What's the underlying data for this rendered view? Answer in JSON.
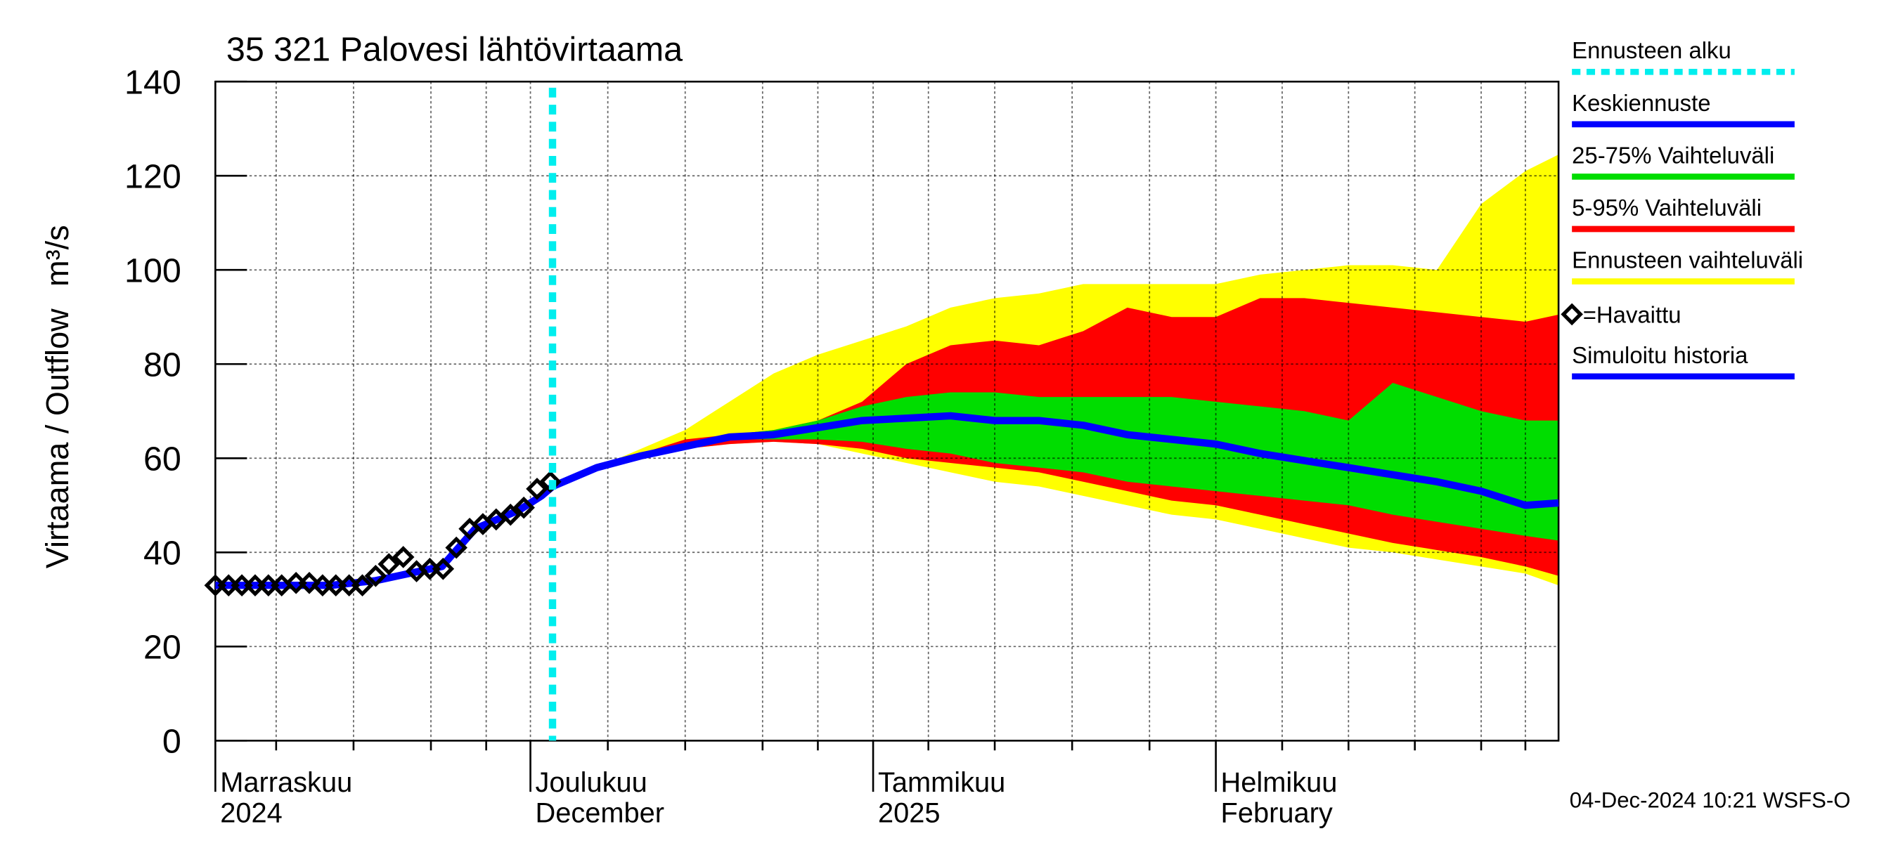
{
  "chart_data": {
    "type": "forecast-band",
    "title": "35 321 Palovesi lähtövirtaama",
    "ylabel": "Virtaama / Outflow",
    "yunit": "m³/s",
    "footer": "04-Dec-2024 10:21 WSFS-O",
    "ylim": [
      0,
      140
    ],
    "yticks": [
      0,
      20,
      40,
      60,
      80,
      100,
      120,
      140
    ],
    "xlim": [
      1.5,
      123
    ],
    "xticks": [
      {
        "value": 1.5,
        "label": [
          "Marraskuu",
          "2024"
        ]
      },
      {
        "value": 30,
        "label": [
          "Joulukuu",
          "December"
        ]
      },
      {
        "value": 61,
        "label": [
          "Tammikuu",
          "2025"
        ]
      },
      {
        "value": 92,
        "label": [
          "Helmikuu",
          "February"
        ]
      }
    ],
    "xminorticks": [
      7,
      14,
      21,
      26,
      37,
      44,
      51,
      56,
      66,
      72,
      79,
      86,
      98,
      104,
      110,
      116,
      120
    ],
    "grid": true,
    "forecast_start": {
      "name": "Ennusteen alku",
      "color": "#00eeee",
      "x": 32
    },
    "bands": [
      {
        "name": "Ennusteen vaihteluväli",
        "color": "#ffff00",
        "x": [
          32,
          36,
          40,
          44,
          48,
          52,
          56,
          60,
          64,
          68,
          72,
          76,
          80,
          84,
          88,
          92,
          96,
          100,
          104,
          108,
          112,
          116,
          120,
          123
        ],
        "low": [
          54,
          58,
          60,
          62,
          63,
          63.5,
          63,
          61,
          59,
          57,
          55,
          54,
          52,
          50,
          48,
          47,
          45,
          43,
          41,
          40,
          38.5,
          37,
          35.5,
          33
        ],
        "high": [
          54,
          58,
          62,
          66,
          72,
          78,
          82,
          85,
          88,
          92,
          94,
          95,
          97,
          97,
          97,
          97,
          99,
          100,
          101,
          101,
          100,
          114,
          121,
          124.5
        ]
      },
      {
        "name": "5-95% Vaihteluväli",
        "color": "#ff0000",
        "x": [
          32,
          36,
          40,
          44,
          48,
          52,
          56,
          60,
          64,
          68,
          72,
          76,
          80,
          84,
          88,
          92,
          96,
          100,
          104,
          108,
          112,
          116,
          120,
          123
        ],
        "low": [
          54,
          58,
          60.5,
          62,
          63,
          63.5,
          63,
          62,
          60,
          59,
          58,
          57,
          55,
          53,
          51,
          50,
          48,
          46,
          44,
          42,
          40.5,
          39,
          37,
          35
        ],
        "high": [
          54,
          58,
          61,
          64,
          65,
          66,
          68,
          72,
          80,
          84,
          85,
          84,
          87,
          92,
          90,
          90,
          94,
          94,
          93,
          92,
          91,
          90,
          89,
          90.5
        ]
      },
      {
        "name": "25-75% Vaihteluväli",
        "color": "#00dd00",
        "x": [
          32,
          36,
          40,
          44,
          48,
          52,
          56,
          60,
          64,
          68,
          72,
          76,
          80,
          84,
          88,
          92,
          96,
          100,
          104,
          108,
          112,
          116,
          120,
          123
        ],
        "low": [
          54,
          58,
          60.5,
          62.5,
          64,
          64,
          64,
          63.5,
          62,
          61,
          59,
          58,
          57,
          55,
          54,
          53,
          52,
          51,
          50,
          48,
          46.5,
          45,
          43.5,
          42.5
        ],
        "high": [
          54,
          58,
          60.5,
          63,
          65,
          66,
          68,
          71,
          73,
          74,
          74,
          73,
          73,
          73,
          73,
          72,
          71,
          70,
          68,
          76,
          73,
          70,
          68,
          68
        ]
      }
    ],
    "series": [
      {
        "name": "Simuloitu historia",
        "color": "#0000ff",
        "x": [
          1.5,
          4,
          8,
          12,
          16,
          18,
          20,
          22,
          23.5,
          25,
          27,
          29,
          31,
          32
        ],
        "values": [
          33,
          33,
          33,
          33,
          34,
          35,
          36,
          37,
          41,
          45,
          47,
          49,
          52,
          54
        ]
      },
      {
        "name": "Keskiennuste",
        "color": "#0000ff",
        "x": [
          32,
          36,
          40,
          44,
          48,
          52,
          56,
          60,
          64,
          68,
          72,
          76,
          80,
          84,
          88,
          92,
          96,
          100,
          104,
          108,
          112,
          116,
          120,
          123
        ],
        "values": [
          54,
          58,
          60.5,
          62.5,
          64.5,
          65,
          66.5,
          68,
          68.5,
          69,
          68,
          68,
          67,
          65,
          64,
          63,
          61,
          59.5,
          58,
          56.5,
          55,
          53,
          50,
          50.5
        ]
      }
    ],
    "observed": {
      "name": "=Havaittu",
      "color": "#000000",
      "x": [
        1.5,
        2.7,
        3.9,
        5.1,
        6.3,
        7.5,
        8.8,
        10.0,
        11.2,
        12.4,
        13.6,
        14.8,
        16.0,
        17.2,
        18.5,
        19.7,
        20.9,
        22.1,
        23.3,
        24.5,
        25.7,
        26.9,
        28.2,
        29.4,
        30.6,
        31.8
      ],
      "values": [
        33,
        33,
        33,
        33,
        33,
        33,
        33.5,
        33.5,
        33,
        33,
        33,
        33,
        35,
        37.5,
        39,
        36,
        36.5,
        36.5,
        41,
        45,
        46,
        47,
        48,
        49.5,
        53.5,
        55
      ]
    }
  }
}
